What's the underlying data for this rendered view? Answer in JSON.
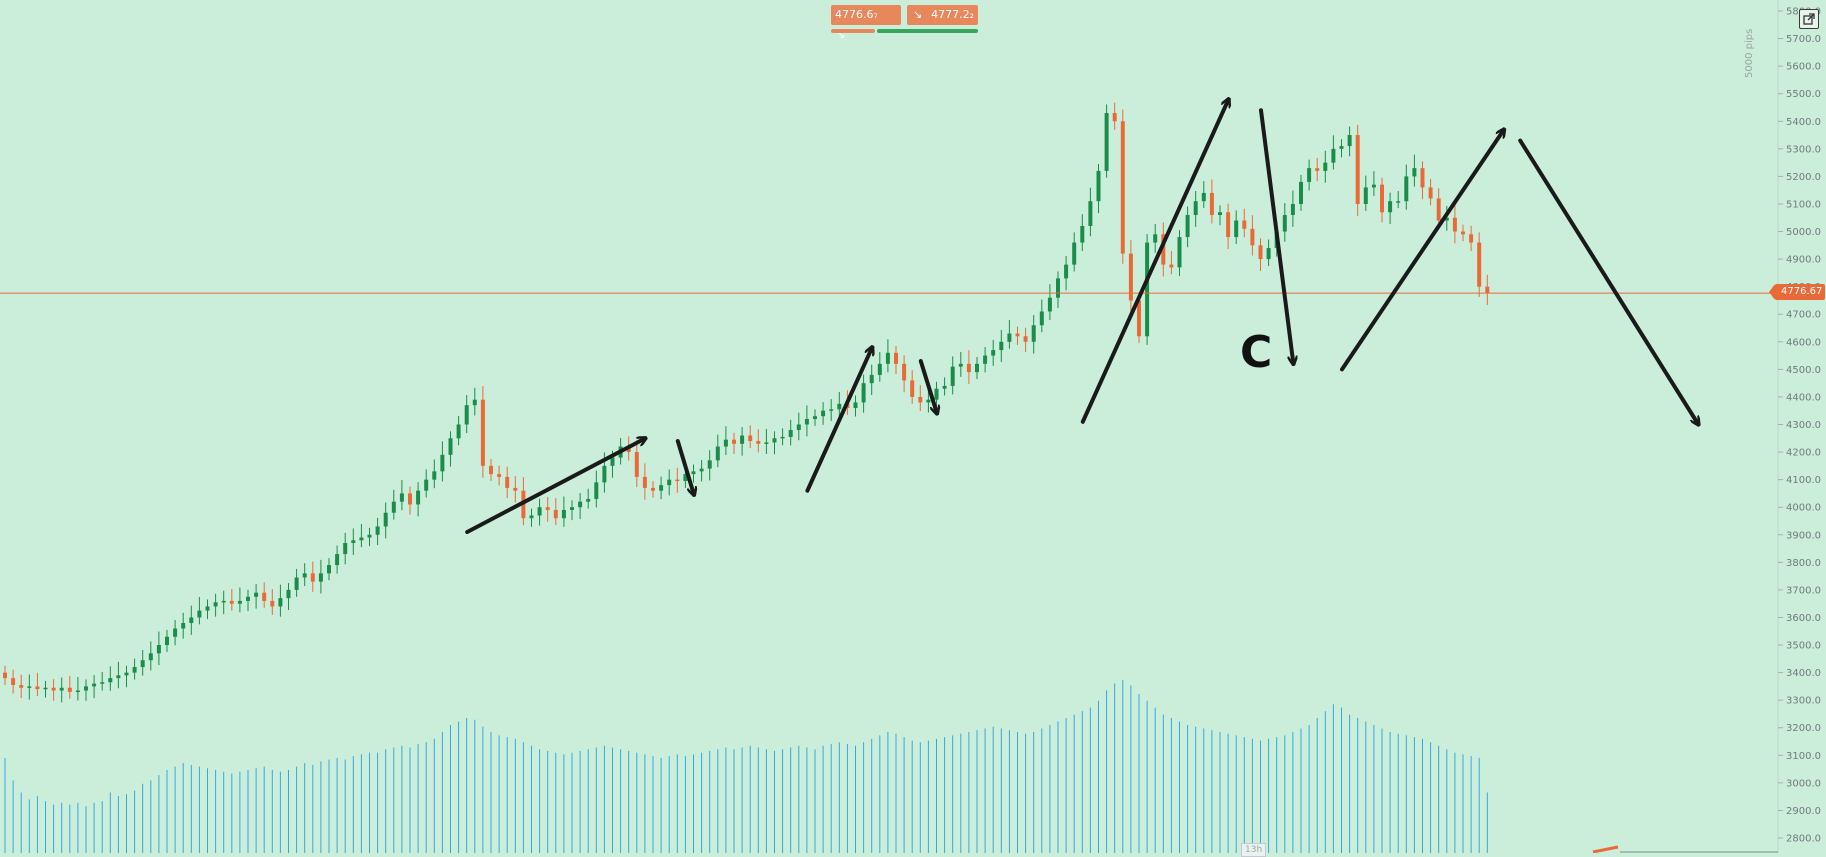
{
  "toolbar": {
    "sell_price": "4776.6₇",
    "buy_price": "4777.2₂",
    "sell_icon": "arrow-down-right-icon",
    "buy_icon": "arrow-down-right-icon",
    "expand_icon": "expand-icon",
    "pips_label": "5000 pips"
  },
  "colors": {
    "background": "#cbeedb",
    "up_candle": "#198d49",
    "down_candle": "#ea6a37",
    "volume": "#3aa6dc",
    "price_line": "#ea6a37",
    "wave_lines": "#1a1a1a"
  },
  "annotation": {
    "wave_letter": "C"
  },
  "current_price": {
    "label": "4776.67",
    "value": 4776.67
  },
  "volume_tag": "13h",
  "chart_data": {
    "type": "candlestick",
    "title": "",
    "xlabel": "",
    "ylabel": "",
    "ylim": [
      2750,
      5850
    ],
    "y_ticks": [
      "5800.0",
      "5700.0",
      "5600.0",
      "5500.0",
      "5400.0",
      "5300.0",
      "5200.0",
      "5100.0",
      "5000.0",
      "4900.0",
      "4800.0",
      "4700.0",
      "4600.0",
      "4500.0",
      "4400.0",
      "4300.0",
      "4200.0",
      "4100.0",
      "4000.0",
      "3900.0",
      "3800.0",
      "3700.0",
      "3600.0",
      "3500.0",
      "3400.0",
      "3300.0",
      "3200.0",
      "3100.0",
      "3000.0",
      "2900.0",
      "2800.0"
    ],
    "grid": false,
    "candles_close": [
      3380,
      3355,
      3345,
      3350,
      3340,
      3345,
      3335,
      3345,
      3330,
      3335,
      3350,
      3360,
      3365,
      3380,
      3390,
      3400,
      3420,
      3445,
      3470,
      3500,
      3530,
      3560,
      3580,
      3600,
      3625,
      3640,
      3655,
      3660,
      3650,
      3660,
      3675,
      3690,
      3660,
      3640,
      3670,
      3700,
      3745,
      3760,
      3730,
      3760,
      3790,
      3830,
      3870,
      3880,
      3890,
      3900,
      3930,
      3980,
      4020,
      4050,
      4010,
      4060,
      4100,
      4130,
      4190,
      4250,
      4300,
      4370,
      4390,
      4150,
      4120,
      4110,
      4070,
      4060,
      3960,
      3970,
      4000,
      3990,
      3960,
      3990,
      4000,
      4020,
      4030,
      4090,
      4150,
      4180,
      4220,
      4200,
      4110,
      4070,
      4060,
      4080,
      4100,
      4095,
      4120,
      4130,
      4140,
      4170,
      4220,
      4245,
      4230,
      4260,
      4240,
      4230,
      4235,
      4250,
      4255,
      4280,
      4300,
      4320,
      4330,
      4350,
      4355,
      4375,
      4360,
      4380,
      4450,
      4480,
      4520,
      4560,
      4520,
      4460,
      4400,
      4380,
      4390,
      4430,
      4440,
      4510,
      4520,
      4490,
      4520,
      4550,
      4570,
      4600,
      4630,
      4620,
      4600,
      4660,
      4710,
      4760,
      4830,
      4880,
      4960,
      5020,
      5110,
      5220,
      5430,
      5400,
      4920,
      4750,
      4620,
      4960,
      4990,
      4880,
      4870,
      4980,
      5060,
      5110,
      5140,
      5060,
      5070,
      4980,
      5040,
      5010,
      4950,
      4900,
      4940,
      5000,
      5060,
      5100,
      5180,
      5230,
      5220,
      5250,
      5300,
      5310,
      5350,
      5100,
      5160,
      5170,
      5070,
      5110,
      5110,
      5200,
      5230,
      5160,
      5120,
      5040,
      5050,
      5000,
      4990,
      4960,
      4800,
      4776.67
    ],
    "candles_open": [
      3400,
      3380,
      3355,
      3345,
      3350,
      3340,
      3345,
      3335,
      3345,
      3330,
      3335,
      3350,
      3360,
      3365,
      3380,
      3390,
      3400,
      3420,
      3445,
      3470,
      3500,
      3530,
      3560,
      3580,
      3600,
      3625,
      3640,
      3655,
      3660,
      3650,
      3660,
      3675,
      3690,
      3660,
      3640,
      3670,
      3700,
      3745,
      3760,
      3730,
      3760,
      3790,
      3830,
      3870,
      3880,
      3890,
      3900,
      3930,
      3980,
      4020,
      4050,
      4010,
      4060,
      4100,
      4130,
      4190,
      4250,
      4300,
      4370,
      4390,
      4150,
      4120,
      4110,
      4070,
      4060,
      3960,
      3970,
      4000,
      3990,
      3960,
      3990,
      4000,
      4020,
      4030,
      4090,
      4150,
      4180,
      4220,
      4200,
      4110,
      4070,
      4060,
      4080,
      4100,
      4095,
      4120,
      4130,
      4140,
      4170,
      4220,
      4245,
      4230,
      4260,
      4240,
      4230,
      4235,
      4250,
      4255,
      4280,
      4300,
      4320,
      4330,
      4350,
      4355,
      4375,
      4360,
      4380,
      4450,
      4480,
      4520,
      4560,
      4520,
      4460,
      4400,
      4380,
      4390,
      4430,
      4440,
      4510,
      4520,
      4490,
      4520,
      4550,
      4570,
      4600,
      4630,
      4620,
      4600,
      4660,
      4710,
      4760,
      4830,
      4880,
      4960,
      5020,
      5110,
      5220,
      5430,
      5400,
      4920,
      4750,
      4620,
      4960,
      4990,
      4880,
      4870,
      4980,
      5060,
      5110,
      5140,
      5060,
      5070,
      4980,
      5040,
      5010,
      4950,
      4900,
      4940,
      5000,
      5060,
      5100,
      5180,
      5230,
      5220,
      5250,
      5300,
      5310,
      5350,
      5100,
      5160,
      5170,
      5070,
      5110,
      5110,
      5200,
      5230,
      5160,
      5120,
      5040,
      5050,
      5000,
      4990,
      4960,
      4800
    ],
    "volume": [
      0.55,
      0.42,
      0.35,
      0.31,
      0.33,
      0.3,
      0.28,
      0.29,
      0.28,
      0.29,
      0.27,
      0.29,
      0.3,
      0.35,
      0.33,
      0.34,
      0.36,
      0.4,
      0.42,
      0.45,
      0.48,
      0.5,
      0.52,
      0.51,
      0.5,
      0.49,
      0.48,
      0.47,
      0.46,
      0.47,
      0.48,
      0.49,
      0.5,
      0.48,
      0.47,
      0.48,
      0.5,
      0.52,
      0.51,
      0.53,
      0.54,
      0.55,
      0.54,
      0.56,
      0.57,
      0.58,
      0.58,
      0.6,
      0.61,
      0.62,
      0.61,
      0.63,
      0.64,
      0.66,
      0.7,
      0.74,
      0.76,
      0.78,
      0.77,
      0.73,
      0.7,
      0.68,
      0.67,
      0.66,
      0.64,
      0.62,
      0.6,
      0.59,
      0.58,
      0.57,
      0.58,
      0.59,
      0.6,
      0.61,
      0.62,
      0.61,
      0.6,
      0.59,
      0.58,
      0.57,
      0.56,
      0.55,
      0.56,
      0.57,
      0.56,
      0.57,
      0.58,
      0.59,
      0.6,
      0.61,
      0.6,
      0.61,
      0.62,
      0.61,
      0.6,
      0.59,
      0.6,
      0.61,
      0.62,
      0.61,
      0.6,
      0.62,
      0.63,
      0.64,
      0.63,
      0.62,
      0.64,
      0.66,
      0.68,
      0.7,
      0.69,
      0.67,
      0.65,
      0.64,
      0.65,
      0.66,
      0.67,
      0.68,
      0.69,
      0.7,
      0.71,
      0.72,
      0.73,
      0.72,
      0.71,
      0.7,
      0.69,
      0.7,
      0.72,
      0.74,
      0.76,
      0.78,
      0.8,
      0.82,
      0.84,
      0.88,
      0.94,
      0.98,
      1.0,
      0.97,
      0.92,
      0.88,
      0.84,
      0.8,
      0.78,
      0.76,
      0.74,
      0.73,
      0.72,
      0.71,
      0.7,
      0.69,
      0.68,
      0.67,
      0.66,
      0.65,
      0.66,
      0.67,
      0.68,
      0.7,
      0.72,
      0.74,
      0.78,
      0.82,
      0.86,
      0.84,
      0.8,
      0.78,
      0.76,
      0.74,
      0.72,
      0.7,
      0.69,
      0.68,
      0.67,
      0.66,
      0.64,
      0.62,
      0.6,
      0.58,
      0.57,
      0.56,
      0.55,
      0.35
    ]
  },
  "wave_arrows": [
    {
      "from": [
        1,
        3910
      ],
      "to": [
        12,
        4250
      ]
    },
    {
      "from": [
        14,
        4240
      ],
      "to": [
        15,
        4045
      ]
    },
    {
      "from": [
        22,
        4060
      ],
      "to": [
        26,
        4580
      ]
    },
    {
      "from": [
        29,
        4530
      ],
      "to": [
        30,
        4340
      ]
    },
    {
      "from": [
        39,
        4310
      ],
      "to": [
        48,
        5480
      ]
    },
    {
      "from": [
        50,
        5440
      ],
      "to": [
        52,
        4520
      ]
    },
    {
      "from": [
        55,
        4500
      ],
      "to": [
        65,
        5370
      ]
    },
    {
      "from": [
        66,
        5330
      ],
      "to": [
        77,
        4300
      ]
    }
  ]
}
